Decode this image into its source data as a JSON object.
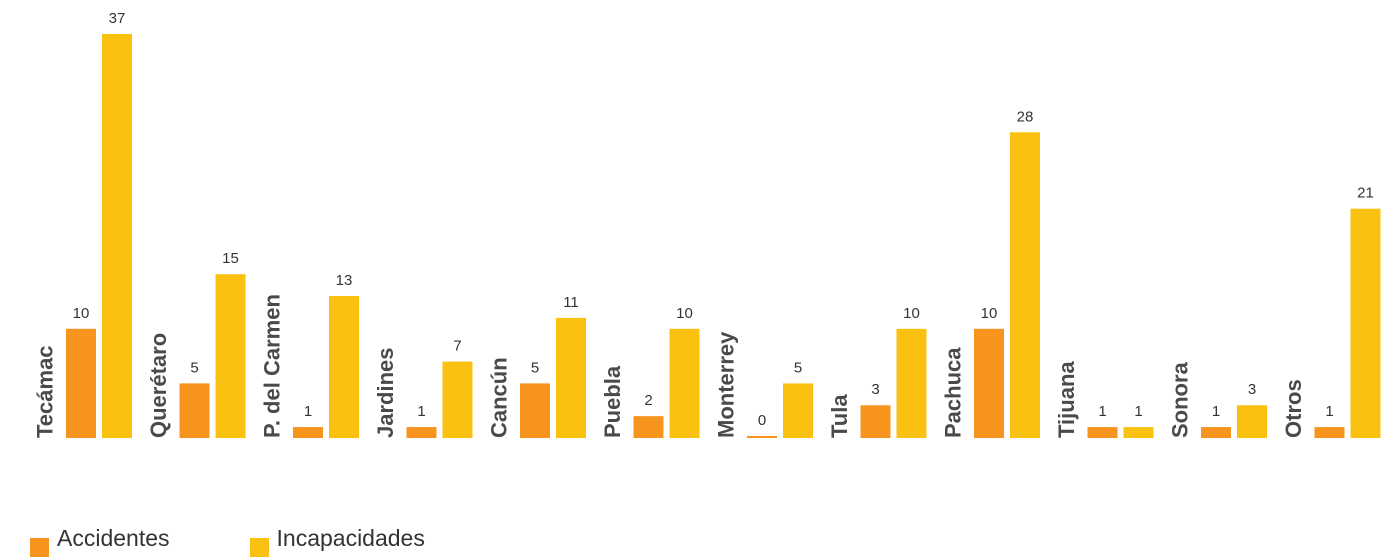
{
  "colors": {
    "accidentes": "#F7941D",
    "incapacidades": "#FBC111",
    "category_label": "#4A4A4A",
    "value_label": "#333333"
  },
  "legend": {
    "accidentes": "Accidentes",
    "incapacidades": "Incapacidades"
  },
  "chart_data": {
    "type": "bar",
    "categories": [
      "Tecámac",
      "Querétaro",
      "P. del Carmen",
      "Jardines",
      "Cancún",
      "Puebla",
      "Monterrey",
      "Tula",
      "Pachuca",
      "Tijuana",
      "Sonora",
      "Otros"
    ],
    "series": [
      {
        "name": "Accidentes",
        "values": [
          10,
          5,
          1,
          1,
          5,
          2,
          0,
          3,
          10,
          1,
          1,
          1
        ]
      },
      {
        "name": "Incapacidades",
        "values": [
          37,
          15,
          13,
          7,
          11,
          10,
          5,
          10,
          28,
          1,
          3,
          21
        ]
      }
    ],
    "ylim": [
      0,
      37
    ],
    "grid": false,
    "legend_position": "bottom-left",
    "category_label_orientation": "vertical"
  }
}
